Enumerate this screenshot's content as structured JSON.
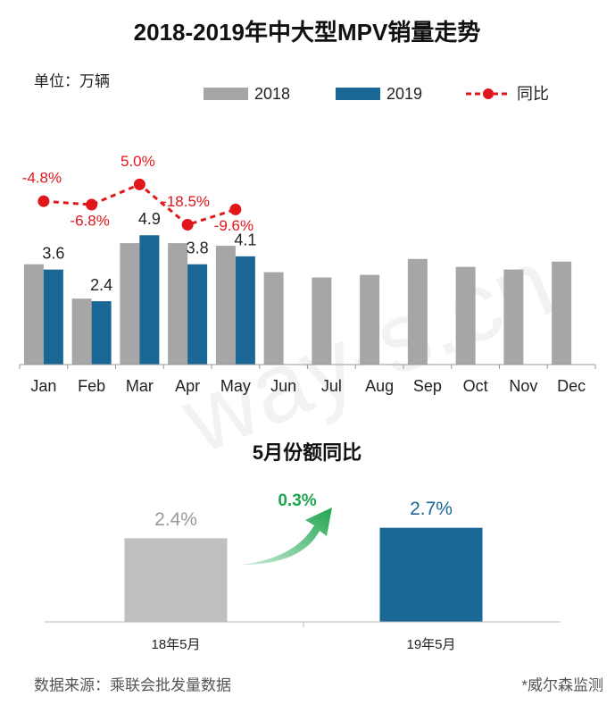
{
  "chart_data": [
    {
      "type": "bar",
      "title": "2018-2019年中大型MPV销量走势",
      "unit_label": "单位：万辆",
      "categories": [
        "Jan",
        "Feb",
        "Mar",
        "Apr",
        "May",
        "Jun",
        "Jul",
        "Aug",
        "Sep",
        "Oct",
        "Nov",
        "Dec"
      ],
      "series": [
        {
          "name": "2018",
          "color": "#a6a6a6",
          "values": [
            3.8,
            2.5,
            4.6,
            4.6,
            4.5,
            3.5,
            3.3,
            3.4,
            4.0,
            3.7,
            3.6,
            3.9
          ]
        },
        {
          "name": "2019",
          "color": "#1a6694",
          "values": [
            3.6,
            2.4,
            4.9,
            3.8,
            4.1,
            null,
            null,
            null,
            null,
            null,
            null,
            null
          ]
        },
        {
          "name": "同比",
          "color": "#e0161b",
          "axis": "y2",
          "values": [
            -4.8,
            -6.8,
            5.0,
            -18.5,
            -9.6,
            null,
            null,
            null,
            null,
            null,
            null,
            null
          ],
          "value_labels": [
            "-4.8%",
            "-6.8%",
            "5.0%",
            "-18.5%",
            "-9.6%",
            null,
            null,
            null,
            null,
            null,
            null,
            null
          ]
        }
      ],
      "ylim": [
        0,
        6.5
      ],
      "y2lim": [
        -100,
        0
      ],
      "grid": false,
      "legend": "top"
    },
    {
      "type": "bar",
      "title": "5月份额同比",
      "categories": [
        "18年5月",
        "19年5月"
      ],
      "values": [
        2.4,
        2.7
      ],
      "value_labels": [
        "2.4%",
        "2.7%"
      ],
      "colors": [
        "#bfbfbf",
        "#1a6694"
      ],
      "annotation": "0.3%",
      "ylim": [
        0,
        3
      ]
    }
  ],
  "source": "数据来源：乘联会批发量数据",
  "note": "*威尔森监测",
  "watermark": "way-s.cn"
}
